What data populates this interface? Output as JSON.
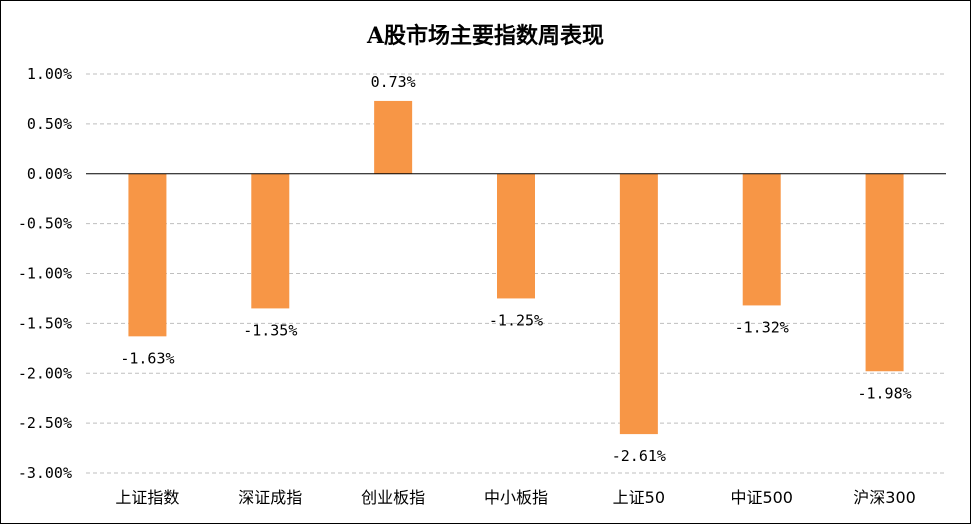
{
  "chart_data": {
    "type": "bar",
    "title": "A股市场主要指数周表现",
    "xlabel": "",
    "ylabel": "",
    "categories": [
      "上证指数",
      "深证成指",
      "创业板指",
      "中小板指",
      "上证50",
      "中证500",
      "沪深300"
    ],
    "values": [
      -1.63,
      -1.35,
      0.73,
      -1.25,
      -2.61,
      -1.32,
      -1.98
    ],
    "value_labels": [
      "-1.63%",
      "-1.35%",
      "0.73%",
      "-1.25%",
      "-2.61%",
      "-1.32%",
      "-1.98%"
    ],
    "ylim": [
      -3.0,
      1.0
    ],
    "yticks": [
      1.0,
      0.5,
      0.0,
      -0.5,
      -1.0,
      -1.5,
      -2.0,
      -2.5,
      -3.0
    ],
    "ytick_labels": [
      "1.00%",
      "0.50%",
      "0.00%",
      "-0.50%",
      "-1.00%",
      "-1.50%",
      "-2.00%",
      "-2.50%",
      "-3.00%"
    ],
    "grid": true,
    "bar_color": "#F79646",
    "grid_color": "#BFBFBF",
    "zero_line_color": "#000000"
  }
}
